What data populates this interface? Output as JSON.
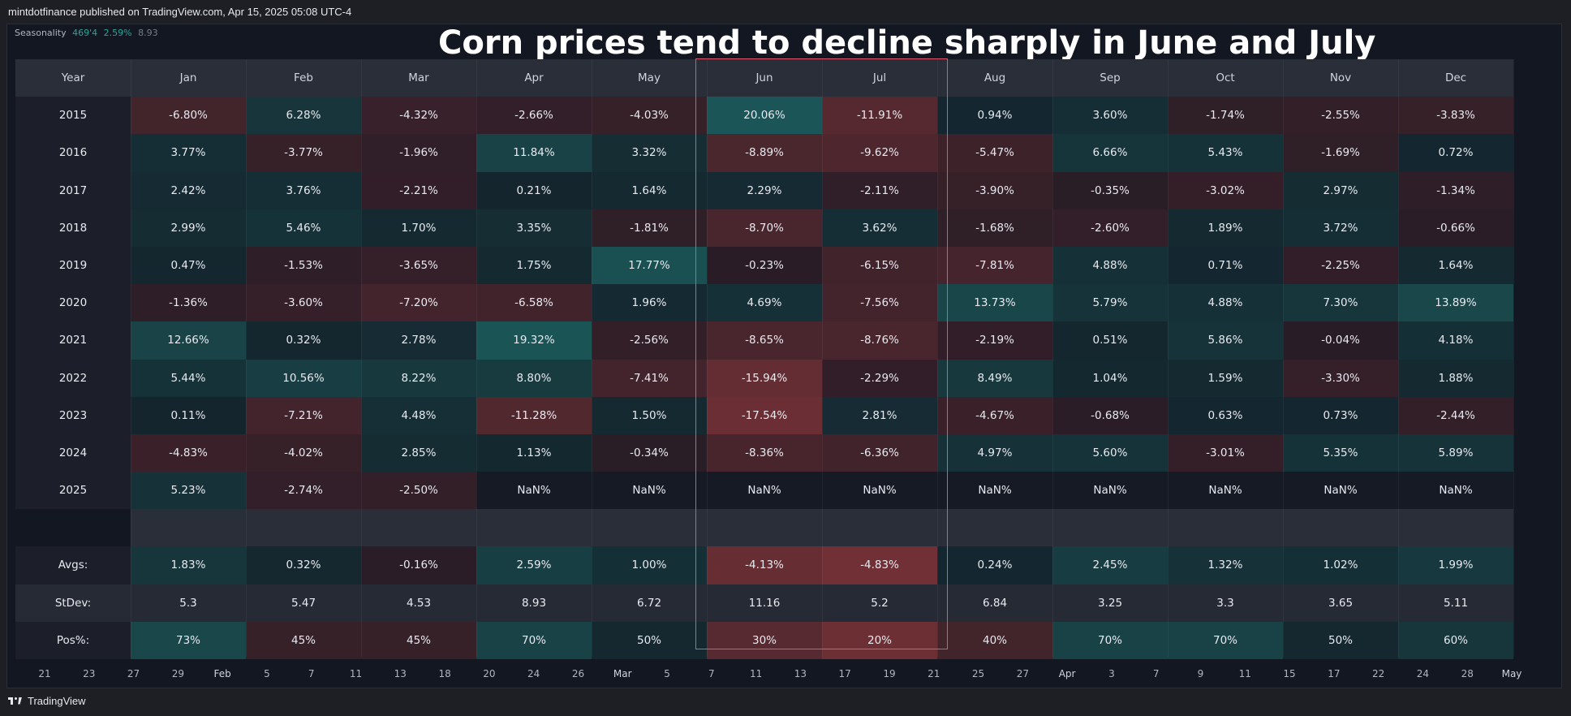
{
  "header": {
    "published_text": "mintdotfinance published on TradingView.com, Apr 15, 2025 05:08 UTC-4"
  },
  "indicator": {
    "name": "Seasonality",
    "value1": "469'4",
    "value2": "2.59%",
    "value3": "8.93"
  },
  "footer": {
    "brand": "TradingView"
  },
  "colors": {
    "positive": "#26a69a",
    "negative": "#ef5350",
    "highlight_border": "#e0566a"
  },
  "chart_data": {
    "type": "table",
    "title": "Corn prices tend to decline sharply in June and July",
    "corner_label": "Year",
    "months": [
      "Jan",
      "Feb",
      "Mar",
      "Apr",
      "May",
      "Jun",
      "Jul",
      "Aug",
      "Sep",
      "Oct",
      "Nov",
      "Dec"
    ],
    "highlighted_months": [
      "Jun",
      "Jul"
    ],
    "rows": [
      {
        "year": "2015",
        "values": [
          "-6.80%",
          "6.28%",
          "-4.32%",
          "-2.66%",
          "-4.03%",
          "20.06%",
          "-11.91%",
          "0.94%",
          "3.60%",
          "-1.74%",
          "-2.55%",
          "-3.83%"
        ]
      },
      {
        "year": "2016",
        "values": [
          "3.77%",
          "-3.77%",
          "-1.96%",
          "11.84%",
          "3.32%",
          "-8.89%",
          "-9.62%",
          "-5.47%",
          "6.66%",
          "5.43%",
          "-1.69%",
          "0.72%"
        ]
      },
      {
        "year": "2017",
        "values": [
          "2.42%",
          "3.76%",
          "-2.21%",
          "0.21%",
          "1.64%",
          "2.29%",
          "-2.11%",
          "-3.90%",
          "-0.35%",
          "-3.02%",
          "2.97%",
          "-1.34%"
        ]
      },
      {
        "year": "2018",
        "values": [
          "2.99%",
          "5.46%",
          "1.70%",
          "3.35%",
          "-1.81%",
          "-8.70%",
          "3.62%",
          "-1.68%",
          "-2.60%",
          "1.89%",
          "3.72%",
          "-0.66%"
        ]
      },
      {
        "year": "2019",
        "values": [
          "0.47%",
          "-1.53%",
          "-3.65%",
          "1.75%",
          "17.77%",
          "-0.23%",
          "-6.15%",
          "-7.81%",
          "4.88%",
          "0.71%",
          "-2.25%",
          "1.64%"
        ]
      },
      {
        "year": "2020",
        "values": [
          "-1.36%",
          "-3.60%",
          "-7.20%",
          "-6.58%",
          "1.96%",
          "4.69%",
          "-7.56%",
          "13.73%",
          "5.79%",
          "4.88%",
          "7.30%",
          "13.89%"
        ]
      },
      {
        "year": "2021",
        "values": [
          "12.66%",
          "0.32%",
          "2.78%",
          "19.32%",
          "-2.56%",
          "-8.65%",
          "-8.76%",
          "-2.19%",
          "0.51%",
          "5.86%",
          "-0.04%",
          "4.18%"
        ]
      },
      {
        "year": "2022",
        "values": [
          "5.44%",
          "10.56%",
          "8.22%",
          "8.80%",
          "-7.41%",
          "-15.94%",
          "-2.29%",
          "8.49%",
          "1.04%",
          "1.59%",
          "-3.30%",
          "1.88%"
        ]
      },
      {
        "year": "2023",
        "values": [
          "0.11%",
          "-7.21%",
          "4.48%",
          "-11.28%",
          "1.50%",
          "-17.54%",
          "2.81%",
          "-4.67%",
          "-0.68%",
          "0.63%",
          "0.73%",
          "-2.44%"
        ]
      },
      {
        "year": "2024",
        "values": [
          "-4.83%",
          "-4.02%",
          "2.85%",
          "1.13%",
          "-0.34%",
          "-8.36%",
          "-6.36%",
          "4.97%",
          "5.60%",
          "-3.01%",
          "5.35%",
          "5.89%"
        ]
      },
      {
        "year": "2025",
        "values": [
          "5.23%",
          "-2.74%",
          "-2.50%",
          "NaN%",
          "NaN%",
          "NaN%",
          "NaN%",
          "NaN%",
          "NaN%",
          "NaN%",
          "NaN%",
          "NaN%"
        ]
      }
    ],
    "summary": [
      {
        "label": "Avgs:",
        "values": [
          "1.83%",
          "0.32%",
          "-0.16%",
          "2.59%",
          "1.00%",
          "-4.13%",
          "-4.83%",
          "0.24%",
          "2.45%",
          "1.32%",
          "1.02%",
          "1.99%"
        ]
      },
      {
        "label": "StDev:",
        "values": [
          "5.3",
          "5.47",
          "4.53",
          "8.93",
          "6.72",
          "11.16",
          "5.2",
          "6.84",
          "3.25",
          "3.3",
          "3.65",
          "5.11"
        ]
      },
      {
        "label": "Pos%:",
        "values": [
          "73%",
          "45%",
          "45%",
          "70%",
          "50%",
          "30%",
          "20%",
          "40%",
          "70%",
          "70%",
          "50%",
          "60%"
        ]
      }
    ],
    "x_axis_ticks": [
      "21",
      "23",
      "27",
      "29",
      "Feb",
      "5",
      "7",
      "11",
      "13",
      "18",
      "20",
      "24",
      "26",
      "Mar",
      "5",
      "7",
      "11",
      "13",
      "17",
      "19",
      "21",
      "25",
      "27",
      "Apr",
      "3",
      "7",
      "9",
      "11",
      "15",
      "17",
      "22",
      "24",
      "28",
      "May"
    ]
  }
}
